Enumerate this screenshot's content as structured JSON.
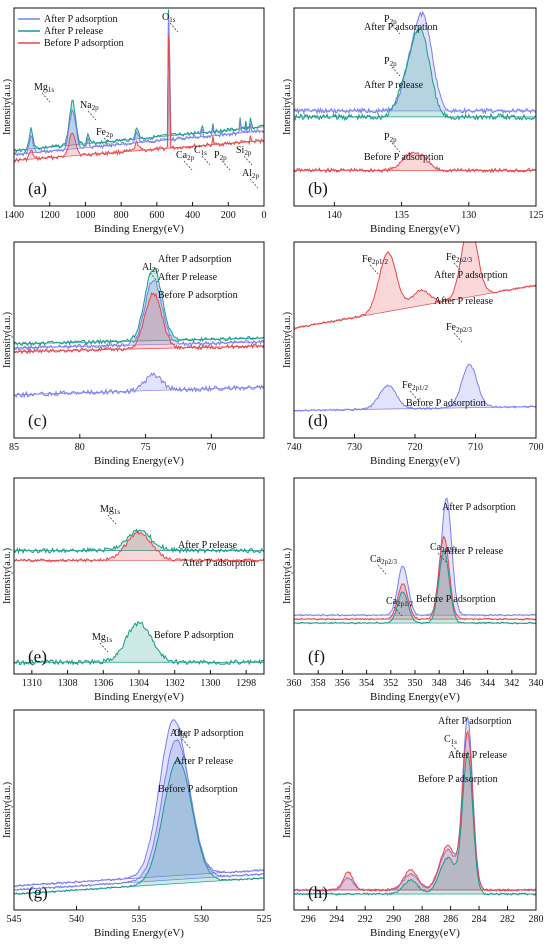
{
  "chart_data": [
    {
      "panel": "a",
      "type": "line",
      "xlabel": "Binding Energy(eV)",
      "ylabel": "Intensity(a.u.)",
      "xlim": [
        1400,
        0
      ],
      "x_ticks": [
        1400,
        1200,
        1000,
        800,
        600,
        400,
        200,
        0
      ],
      "legend_position": "top-left",
      "legend": [
        "After P adsorption",
        "After P release",
        "Before P adsorption"
      ],
      "annotations": [
        {
          "main": "Mg",
          "sub": "1s",
          "x": 1304
        },
        {
          "main": "Na",
          "sub": "2p",
          "x": 1072
        },
        {
          "main": "Fe",
          "sub": "2p",
          "x": 711
        },
        {
          "main": "O",
          "sub": "1s",
          "x": 532
        },
        {
          "main": "Ca",
          "sub": "2p",
          "x": 347
        },
        {
          "main": "C",
          "sub": "1s",
          "x": 285
        },
        {
          "main": "P",
          "sub": "2p",
          "x": 133
        },
        {
          "main": "Si",
          "sub": "2p",
          "x": 102
        },
        {
          "main": "Al",
          "sub": "2p",
          "x": 74
        }
      ]
    },
    {
      "panel": "b",
      "type": "line",
      "xlabel": "Binding Energy(eV)",
      "ylabel": "Intensity(a.u.)",
      "xlim": [
        143,
        125
      ],
      "x_ticks": [
        140,
        135,
        130,
        125
      ],
      "peaks": [
        {
          "label": "P2p",
          "position_ev": 133.3
        }
      ],
      "annotations": [
        {
          "main": "P",
          "sub": "2p",
          "text": "After P adsorption"
        },
        {
          "main": "P",
          "sub": "2p",
          "text": "After P release"
        },
        {
          "main": "P",
          "sub": "2p",
          "text": "Before P adsorption"
        }
      ]
    },
    {
      "panel": "c",
      "type": "line",
      "xlabel": "Binding Energy(eV)",
      "ylabel": "Intensity(a.u.)",
      "xlim": [
        85,
        66
      ],
      "x_ticks": [
        85,
        80,
        75,
        70
      ],
      "peaks": [
        {
          "label": "Al2p",
          "position_ev": 74.4
        }
      ],
      "annotations": [
        {
          "main": "Al",
          "sub": "2p",
          "text": "After P adsorption"
        },
        {
          "main": "",
          "sub": "",
          "text": "After P release"
        },
        {
          "main": "",
          "sub": "",
          "text": "Before P adsorption"
        }
      ]
    },
    {
      "panel": "d",
      "type": "line",
      "xlabel": "Binding Energy(eV)",
      "ylabel": "Intensity(a.u.)",
      "xlim": [
        740,
        700
      ],
      "x_ticks": [
        740,
        730,
        720,
        710,
        700
      ],
      "peaks": [
        {
          "label": "Fe2p1/2",
          "position_ev": 724.5
        },
        {
          "label": "Fe2p2/3",
          "position_ev": 711
        }
      ],
      "annotations": [
        {
          "main": "Fe",
          "sub": "2p1/2",
          "text": ""
        },
        {
          "main": "Fe",
          "sub": "2p2/3",
          "text": "After P adsorption"
        },
        {
          "main": "",
          "sub": "",
          "text": "After P release"
        },
        {
          "main": "Fe",
          "sub": "2p1/2",
          "text": ""
        },
        {
          "main": "Fe",
          "sub": "2p2/3",
          "text": ""
        },
        {
          "main": "",
          "sub": "",
          "text": "Before P adsorption"
        }
      ]
    },
    {
      "panel": "e",
      "type": "line",
      "xlabel": "Binding Energy(eV)",
      "ylabel": "Intensity(a.u.)",
      "xlim": [
        1311,
        1297
      ],
      "x_ticks": [
        1310,
        1308,
        1306,
        1304,
        1302,
        1300,
        1298
      ],
      "peaks": [
        {
          "label": "Mg1s",
          "position_ev": 1304
        }
      ],
      "annotations": [
        {
          "main": "Mg",
          "sub": "1s",
          "text": "After P release"
        },
        {
          "main": "",
          "sub": "",
          "text": "After P adsorption"
        },
        {
          "main": "Mg",
          "sub": "1s",
          "text": "Before P adsorption"
        }
      ]
    },
    {
      "panel": "f",
      "type": "line",
      "xlabel": "Binding Energy(eV)",
      "ylabel": "Intensity(a.u.)",
      "xlim": [
        360,
        340
      ],
      "x_ticks": [
        360,
        358,
        356,
        354,
        352,
        350,
        348,
        346,
        344,
        342,
        340
      ],
      "peaks": [
        {
          "label": "Ca2p1/2",
          "position_ev": 350.9
        },
        {
          "label": "Ca2p2/3",
          "position_ev": 347.4
        }
      ],
      "annotations": [
        {
          "main": "Ca",
          "sub": "2p2/3",
          "text": "After P adsorption"
        },
        {
          "main": "Ca",
          "sub": "2p2/3",
          "text": "After P release"
        },
        {
          "main": "Ca",
          "sub": "2p1/2",
          "text": "Before P adsorption"
        }
      ]
    },
    {
      "panel": "g",
      "type": "line",
      "xlabel": "Binding Energy(eV)",
      "ylabel": "Intensity(a.u.)",
      "xlim": [
        545,
        525
      ],
      "x_ticks": [
        545,
        540,
        535,
        530,
        525
      ],
      "peaks": [
        {
          "label": "O1s",
          "position_ev": 532.2
        }
      ],
      "annotations": [
        {
          "main": "O",
          "sub": "1s",
          "text": "After P adsorption"
        },
        {
          "main": "",
          "sub": "",
          "text": "After P release"
        },
        {
          "main": "",
          "sub": "",
          "text": "Before P adsorption"
        }
      ]
    },
    {
      "panel": "h",
      "type": "line",
      "xlabel": "Binding Energy(eV)",
      "ylabel": "Intensity(a.u.)",
      "xlim": [
        297,
        280
      ],
      "x_ticks": [
        296,
        294,
        292,
        290,
        288,
        286,
        284,
        282,
        280
      ],
      "peaks": [
        {
          "label": "C1s",
          "position_ev": 284.8
        }
      ],
      "annotations": [
        {
          "main": "",
          "sub": "",
          "text": "After P adsorption"
        },
        {
          "main": "C",
          "sub": "1s",
          "text": ""
        },
        {
          "main": "",
          "sub": "",
          "text": "After P release"
        },
        {
          "main": "",
          "sub": "",
          "text": "Before P adsorption"
        }
      ]
    }
  ],
  "colors": {
    "after_adsorption": "#7b7ff0",
    "after_release": "#1a9c8a",
    "before_adsorption": "#e8474c",
    "axis": "#111111"
  }
}
